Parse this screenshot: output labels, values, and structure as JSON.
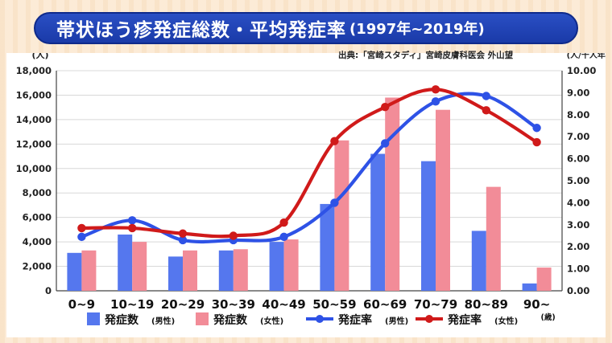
{
  "header": {
    "title": "帯状ほう疹発症総数・平均発症率",
    "subtitle": "(1997年~2019年)"
  },
  "source": "出典:「宮崎スタディ」宮崎皮膚科医会 外山望",
  "colors": {
    "male": "#2e52e6",
    "female": "#d01a1a",
    "bar_male": "#5577ee",
    "bar_female": "#f28c98"
  },
  "chart_data": {
    "type": "bar",
    "categories": [
      "0~9",
      "10~19",
      "20~29",
      "30~39",
      "40~49",
      "50~59",
      "60~69",
      "70~79",
      "80~89",
      "90~"
    ],
    "left_unit": "(人)",
    "right_unit": "(人/千人年)",
    "x_unit": "(歳)",
    "ylim_left": [
      0,
      18000
    ],
    "yticks_left": [
      "0",
      "2,000",
      "4,000",
      "6,000",
      "8,000",
      "10,000",
      "12,000",
      "14,000",
      "16,000",
      "18,000"
    ],
    "ylim_right": [
      0,
      10
    ],
    "yticks_right": [
      "0.00",
      "1.00",
      "2.00",
      "3.00",
      "4.00",
      "5.00",
      "6.00",
      "7.00",
      "8.00",
      "9.00",
      "10.00"
    ],
    "grid": true,
    "legend_position": "bottom",
    "series": [
      {
        "name": "発症数",
        "tag": "(男性)",
        "kind": "bar",
        "axis": "left",
        "values": [
          3100,
          4600,
          2800,
          3300,
          4000,
          7100,
          11200,
          10600,
          4900,
          600
        ]
      },
      {
        "name": "発症数",
        "tag": "(女性)",
        "kind": "bar",
        "axis": "left",
        "values": [
          3300,
          4000,
          3300,
          3400,
          4200,
          12300,
          15800,
          14800,
          8500,
          1900
        ]
      },
      {
        "name": "発症率",
        "tag": "(男性)",
        "kind": "line",
        "axis": "right",
        "values": [
          2.45,
          3.2,
          2.3,
          2.3,
          2.45,
          4.0,
          6.7,
          8.6,
          8.85,
          7.4
        ]
      },
      {
        "name": "発症率",
        "tag": "(女性)",
        "kind": "line",
        "axis": "right",
        "values": [
          2.85,
          2.85,
          2.6,
          2.5,
          3.1,
          6.8,
          8.35,
          9.15,
          8.2,
          6.75
        ]
      }
    ]
  }
}
